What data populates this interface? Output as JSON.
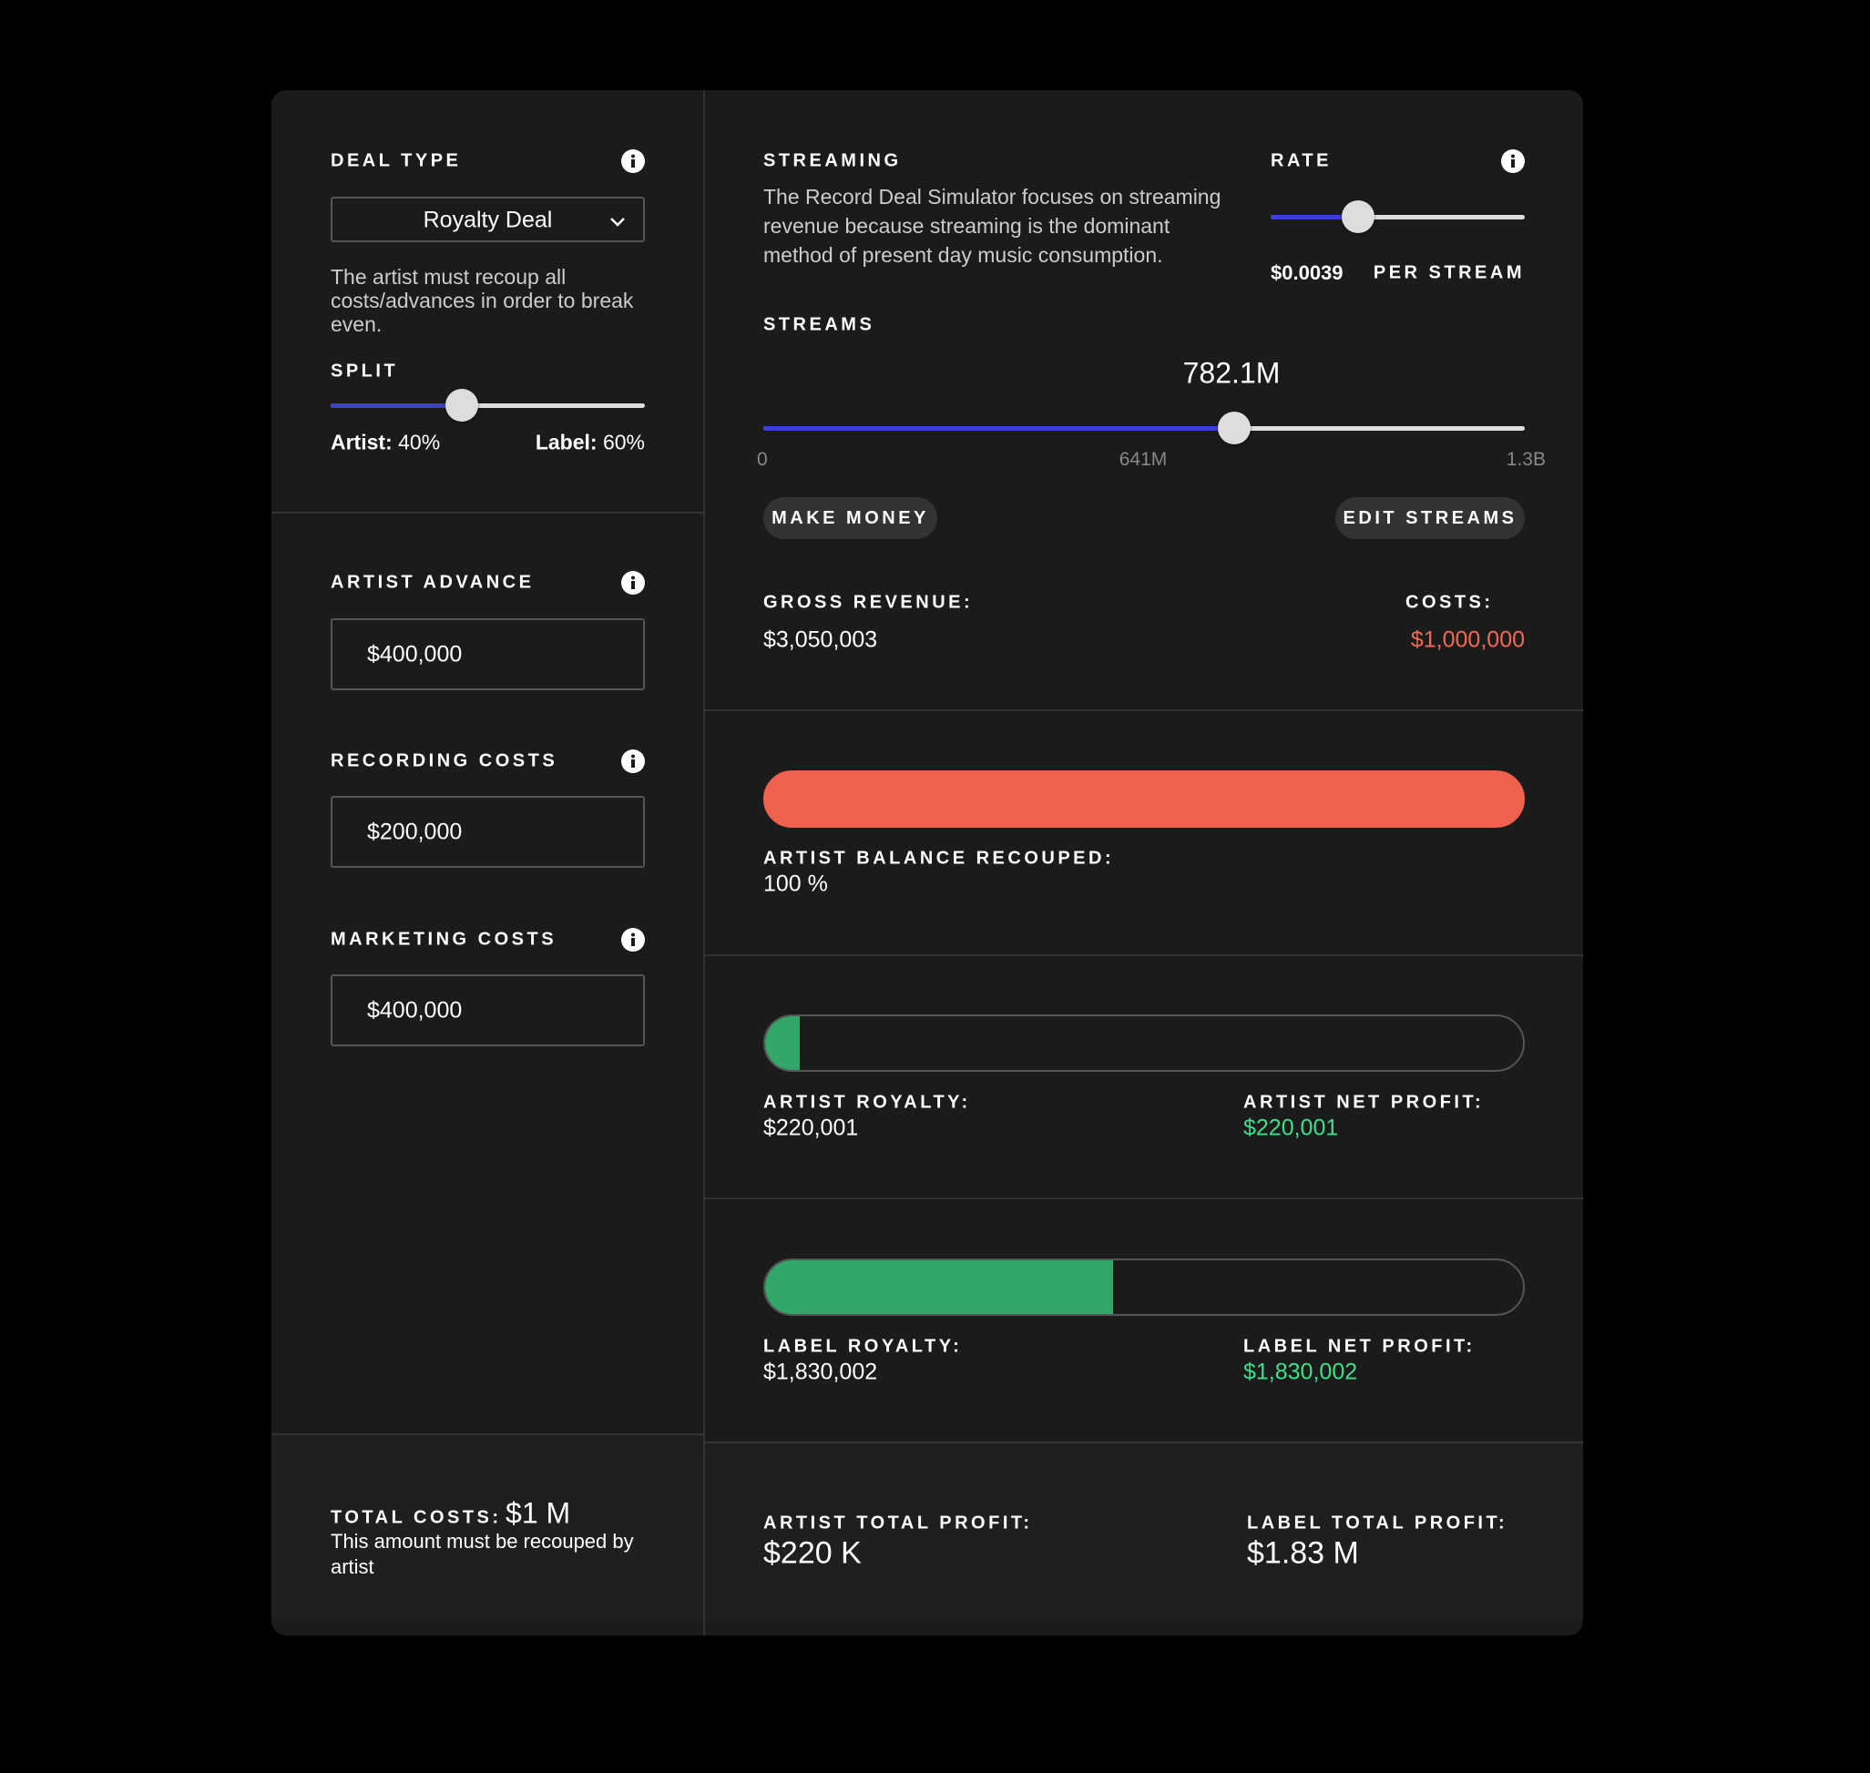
{
  "deal_type": {
    "label": "DEAL TYPE",
    "selected": "Royalty Deal",
    "description": "The artist must recoup all costs/advances in order to break even."
  },
  "split": {
    "label": "SPLIT",
    "artist_label": "Artist:",
    "artist_value": "40%",
    "label_label": "Label:",
    "label_value": "60%"
  },
  "artist_advance": {
    "label": "ARTIST ADVANCE",
    "value": "$400,000"
  },
  "recording_costs": {
    "label": "RECORDING COSTS",
    "value": "$200,000"
  },
  "marketing_costs": {
    "label": "MARKETING COSTS",
    "value": "$400,000"
  },
  "total_costs": {
    "label": "TOTAL COSTS:",
    "value": "$1 M",
    "note": "This amount must be recouped by artist"
  },
  "streaming": {
    "label": "STREAMING",
    "description": "The Record Deal Simulator focuses on streaming revenue because streaming is the dominant method of present day music consumption."
  },
  "rate": {
    "label": "RATE",
    "value": "$0.0039",
    "unit": "PER STREAM"
  },
  "streams": {
    "label": "STREAMS",
    "value": "782.1M",
    "ticks": [
      "0",
      "641M",
      "1.3B"
    ]
  },
  "buttons": [
    "MAKE MONEY",
    "EDIT STREAMS"
  ],
  "gross_revenue": {
    "label": "GROSS REVENUE:",
    "value": "$3,050,003"
  },
  "costs": {
    "label": "COSTS:",
    "value": "$1,000,000"
  },
  "recouped": {
    "label": "ARTIST BALANCE RECOUPED:",
    "value": "100 %"
  },
  "artist_royalty": {
    "label": "ARTIST ROYALTY:",
    "value": "$220,001"
  },
  "artist_net_profit": {
    "label": "ARTIST NET PROFIT:",
    "value": "$220,001"
  },
  "label_royalty": {
    "label": "LABEL ROYALTY:",
    "value": "$1,830,002"
  },
  "label_net_profit": {
    "label": "LABEL NET PROFIT:",
    "value": "$1,830,002"
  },
  "artist_total_profit": {
    "label": "ARTIST TOTAL PROFIT:",
    "value": "$220 K"
  },
  "label_total_profit": {
    "label": "LABEL TOTAL PROFIT:",
    "value": "$1.83 M"
  }
}
